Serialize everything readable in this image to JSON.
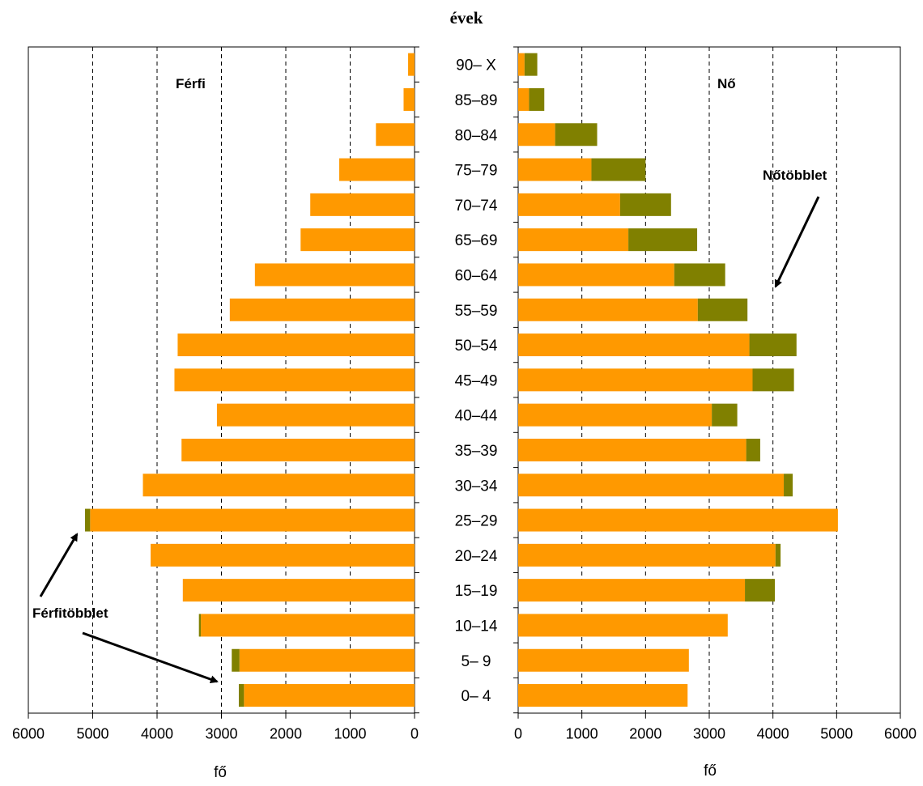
{
  "chart_data": {
    "type": "bar",
    "title": "évek",
    "categories": [
      "90– X",
      "85–89",
      "80–84",
      "75–79",
      "70–74",
      "65–69",
      "60–64",
      "55–59",
      "50–54",
      "45–49",
      "40–44",
      "35–39",
      "30–34",
      "25–29",
      "20–24",
      "15–19",
      "10–14",
      "5– 9",
      "0– 4"
    ],
    "xlim": [
      0,
      6000
    ],
    "ticks": [
      0,
      1000,
      2000,
      3000,
      4000,
      5000,
      6000
    ],
    "xlabel_left": "fő",
    "xlabel_right": "fő",
    "grid": "vertical dashed at 1000 intervals",
    "colors": {
      "base": "#FF9900",
      "surplus": "#808000",
      "grid": "#000000"
    },
    "panels": [
      {
        "name": "Férfi",
        "side": "left",
        "base": [
          100,
          170,
          600,
          1170,
          1620,
          1770,
          2480,
          2870,
          3680,
          3730,
          3070,
          3620,
          4220,
          5040,
          4100,
          3600,
          3320,
          2720,
          2650
        ],
        "surplus": [
          0,
          0,
          0,
          0,
          0,
          0,
          0,
          0,
          0,
          0,
          0,
          0,
          0,
          80,
          0,
          0,
          30,
          120,
          80
        ]
      },
      {
        "name": "Nő",
        "side": "right",
        "base": [
          100,
          170,
          580,
          1150,
          1600,
          1730,
          2450,
          2820,
          3630,
          3680,
          3040,
          3580,
          4170,
          5020,
          4040,
          3560,
          3290,
          2680,
          2660
        ],
        "surplus": [
          200,
          240,
          660,
          850,
          800,
          1080,
          800,
          780,
          740,
          650,
          400,
          220,
          140,
          0,
          80,
          470,
          0,
          0,
          0
        ]
      }
    ],
    "annotations": [
      {
        "text": "Nőtöbblet",
        "panel": "Nő"
      },
      {
        "text": "Férfitöbblet",
        "panel": "Férfi"
      }
    ]
  }
}
